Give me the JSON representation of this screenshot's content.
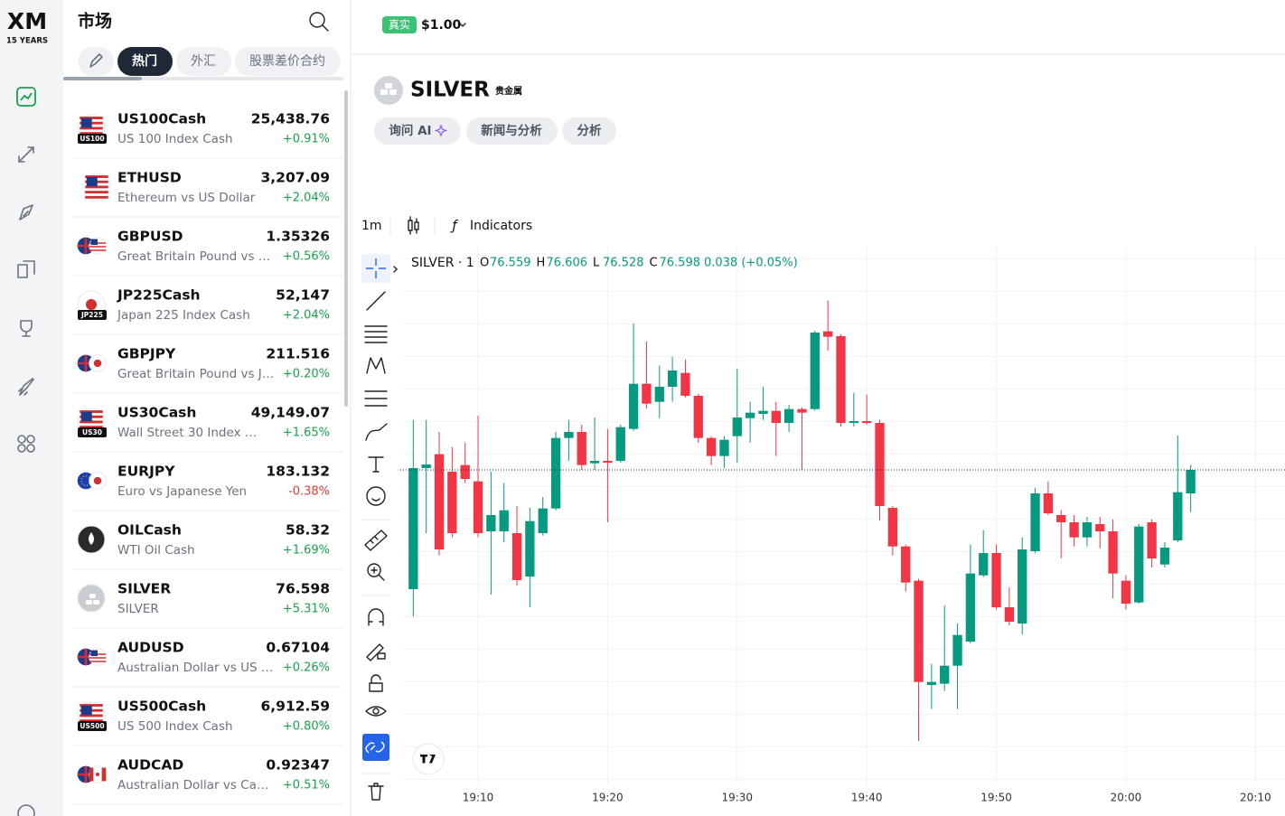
{
  "brand": {
    "logo": "XM",
    "tagline": "15 YEARS"
  },
  "market": {
    "title": "市场",
    "tabs": [
      "热门",
      "外汇",
      "股票差价合约"
    ],
    "rows": [
      {
        "symbol": "US100Cash",
        "name": "US 100 Index Cash",
        "price": "25,438.76",
        "change": "+0.91%",
        "badge": "US100"
      },
      {
        "symbol": "ETHUSD",
        "name": "Ethereum vs US Dollar",
        "price": "3,207.09",
        "change": "+2.04%"
      },
      {
        "symbol": "GBPUSD",
        "name": "Great Britain Pound vs …",
        "price": "1.35326",
        "change": "+0.56%"
      },
      {
        "symbol": "JP225Cash",
        "name": "Japan 225 Index Cash",
        "price": "52,147",
        "change": "+2.04%",
        "badge": "JP225"
      },
      {
        "symbol": "GBPJPY",
        "name": "Great Britain Pound vs J…",
        "price": "211.516",
        "change": "+0.20%"
      },
      {
        "symbol": "US30Cash",
        "name": "Wall Street 30 Index …",
        "price": "49,149.07",
        "change": "+1.65%",
        "badge": "US30"
      },
      {
        "symbol": "EURJPY",
        "name": "Euro vs Japanese Yen",
        "price": "183.132",
        "change": "-0.38%"
      },
      {
        "symbol": "OILCash",
        "name": "WTI Oil Cash",
        "price": "58.32",
        "change": "+1.69%"
      },
      {
        "symbol": "SILVER",
        "name": "SILVER",
        "price": "76.598",
        "change": "+5.31%"
      },
      {
        "symbol": "AUDUSD",
        "name": "Australian Dollar vs US …",
        "price": "0.67104",
        "change": "+0.26%"
      },
      {
        "symbol": "US500Cash",
        "name": "US 500 Index Cash",
        "price": "6,912.59",
        "change": "+0.80%",
        "badge": "US500"
      },
      {
        "symbol": "AUDCAD",
        "name": "Australian Dollar vs Ca…",
        "price": "0.92347",
        "change": "+0.51%"
      }
    ]
  },
  "account": {
    "mode": "真实",
    "balance": "$1.00"
  },
  "instrument": {
    "symbol": "SILVER",
    "category": "贵金属",
    "actions": [
      "询问 AI",
      "新闻与分析",
      "分析"
    ]
  },
  "toolbar": {
    "interval": "1m",
    "indicators": "Indicators"
  },
  "chart_data": {
    "type": "candlestick",
    "legend": {
      "label": "SILVER · 1",
      "fields": [
        {
          "key": "O",
          "value": 76.559
        },
        {
          "key": "H",
          "value": 76.606
        },
        {
          "key": "L",
          "value": 76.528
        },
        {
          "key": "C",
          "value": 76.598
        }
      ],
      "change": "0.038 (+0.05%)"
    },
    "x": [
      "19:05",
      "19:06",
      "19:07",
      "19:08",
      "19:09",
      "19:10",
      "19:11",
      "19:12",
      "19:13",
      "19:14",
      "19:15",
      "19:16",
      "19:17",
      "19:18",
      "19:19",
      "19:20",
      "19:21",
      "19:22",
      "19:23",
      "19:24",
      "19:25",
      "19:26",
      "19:27",
      "19:28",
      "19:29",
      "19:30",
      "19:31",
      "19:32",
      "19:33",
      "19:34",
      "19:35",
      "19:36",
      "19:37",
      "19:38",
      "19:39",
      "19:40",
      "19:41",
      "19:42",
      "19:43",
      "19:44",
      "19:45",
      "19:46",
      "19:47",
      "19:48",
      "19:49",
      "19:50",
      "19:51",
      "19:52",
      "19:53",
      "19:54",
      "19:55",
      "19:56",
      "19:57",
      "19:58",
      "19:59",
      "20:00",
      "20:01",
      "20:02",
      "20:03",
      "20:04",
      "20:05"
    ],
    "open": [
      76.4,
      76.601,
      76.624,
      76.595,
      76.606,
      76.579,
      76.496,
      76.496,
      76.493,
      76.421,
      76.493,
      76.534,
      76.651,
      76.661,
      76.609,
      76.613,
      76.613,
      76.666,
      76.741,
      76.711,
      76.736,
      76.759,
      76.721,
      76.651,
      76.621,
      76.654,
      76.684,
      76.691,
      76.696,
      76.676,
      76.699,
      76.699,
      76.828,
      76.82,
      76.676,
      76.679,
      76.676,
      76.535,
      76.471,
      76.414,
      76.241,
      76.243,
      76.273,
      76.313,
      76.423,
      76.46,
      76.37,
      76.343,
      76.463,
      76.559,
      76.523,
      76.511,
      76.486,
      76.508,
      76.496,
      76.414,
      76.378,
      76.511,
      76.441,
      76.481,
      76.559
    ],
    "high": [
      76.681,
      76.681,
      76.661,
      76.636,
      76.643,
      76.688,
      76.595,
      76.576,
      76.538,
      76.535,
      76.553,
      76.661,
      76.681,
      76.673,
      76.685,
      76.666,
      76.673,
      76.841,
      76.811,
      76.771,
      76.786,
      76.781,
      76.724,
      76.654,
      76.654,
      76.766,
      76.711,
      76.736,
      76.711,
      76.706,
      76.702,
      76.829,
      76.879,
      76.823,
      76.726,
      76.723,
      76.681,
      76.538,
      76.474,
      76.417,
      76.276,
      76.373,
      76.343,
      76.474,
      76.498,
      76.474,
      76.403,
      76.486,
      76.568,
      76.579,
      76.531,
      76.523,
      76.52,
      76.52,
      76.516,
      76.423,
      76.508,
      76.516,
      76.478,
      76.655,
      76.606
    ],
    "low": [
      76.355,
      76.493,
      76.456,
      76.486,
      76.576,
      76.486,
      76.391,
      76.478,
      76.406,
      76.37,
      76.489,
      76.531,
      76.613,
      76.598,
      76.598,
      76.511,
      76.61,
      76.663,
      76.7,
      76.684,
      76.711,
      76.718,
      76.643,
      76.606,
      76.601,
      76.61,
      76.643,
      76.681,
      76.621,
      76.661,
      76.598,
      76.696,
      76.796,
      76.67,
      76.67,
      76.673,
      76.514,
      76.456,
      76.396,
      76.148,
      76.201,
      76.231,
      76.201,
      76.31,
      76.42,
      76.366,
      76.34,
      76.325,
      76.46,
      76.523,
      76.451,
      76.471,
      76.471,
      76.468,
      76.385,
      76.366,
      76.376,
      76.436,
      76.436,
      76.478,
      76.528
    ],
    "close": [
      76.601,
      76.607,
      76.466,
      76.493,
      76.583,
      76.493,
      76.523,
      76.531,
      76.415,
      76.513,
      76.534,
      76.651,
      76.661,
      76.606,
      76.613,
      76.61,
      76.669,
      76.741,
      76.708,
      76.736,
      76.763,
      76.721,
      76.651,
      76.621,
      76.648,
      76.685,
      76.693,
      76.696,
      76.676,
      76.699,
      76.693,
      76.826,
      76.819,
      76.676,
      76.679,
      76.676,
      76.538,
      76.471,
      76.411,
      76.246,
      76.246,
      76.273,
      76.324,
      76.426,
      76.46,
      76.37,
      76.346,
      76.466,
      76.559,
      76.526,
      76.511,
      76.486,
      76.511,
      76.496,
      76.426,
      76.376,
      76.504,
      76.451,
      76.469,
      76.561,
      76.598
    ],
    "up_color": "#089981",
    "down_color": "#f23645",
    "xlim": [
      "19:04",
      "20:12"
    ],
    "ylim": [
      76.076,
      76.97
    ],
    "xticks": [
      "19:10",
      "19:20",
      "19:30",
      "19:40",
      "19:50",
      "20:00",
      "20:10"
    ],
    "grid": true
  }
}
